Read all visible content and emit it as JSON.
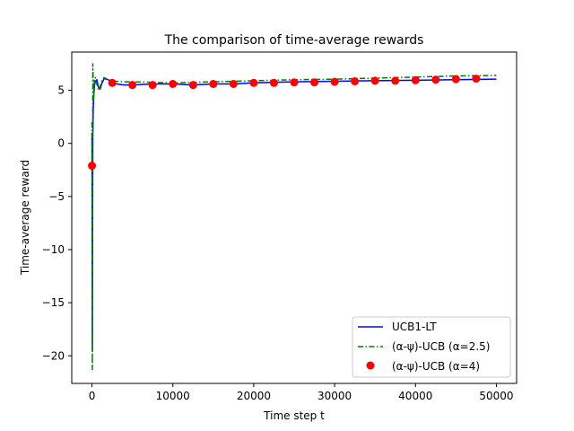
{
  "chart_data": {
    "type": "line",
    "title": "The comparison of time-average rewards",
    "xlabel": "Time step t",
    "ylabel": "Time-average reward",
    "xlim": [
      -2500,
      52500
    ],
    "ylim": [
      -22.6,
      8.6
    ],
    "xticks": [
      0,
      10000,
      20000,
      30000,
      40000,
      50000
    ],
    "xtick_labels": [
      "0",
      "10000",
      "20000",
      "30000",
      "40000",
      "50000"
    ],
    "yticks": [
      -20,
      -15,
      -10,
      -5,
      0,
      5
    ],
    "ytick_labels": [
      "−20",
      "−15",
      "−10",
      "−5",
      "0",
      "5"
    ],
    "grid": false,
    "legend_position": "lower-right",
    "series": [
      {
        "name": "UCB1-LT",
        "style": "solid",
        "color": "#0000ff",
        "x": [
          0,
          50,
          100,
          150,
          200,
          300,
          400,
          600,
          800,
          1000,
          1200,
          1500,
          2000,
          2500,
          3000,
          4000,
          5000,
          7500,
          10000,
          12500,
          15000,
          17500,
          20000,
          25000,
          30000,
          35000,
          40000,
          45000,
          50000
        ],
        "y": [
          1.0,
          -19.5,
          0.5,
          3.0,
          4.2,
          5.4,
          5.8,
          6.0,
          5.3,
          5.1,
          5.6,
          6.1,
          6.0,
          5.8,
          5.6,
          5.5,
          5.5,
          5.6,
          5.6,
          5.5,
          5.6,
          5.6,
          5.7,
          5.8,
          5.85,
          5.9,
          5.95,
          6.0,
          6.05
        ]
      },
      {
        "name": "(α-ψ)-UCB (α=2.5)",
        "style": "dashdot",
        "color": "#008000",
        "x": [
          0,
          50,
          100,
          150,
          200,
          300,
          400,
          600,
          800,
          1000,
          1200,
          1500,
          2000,
          2500,
          3000,
          4000,
          5000,
          7500,
          10000,
          12500,
          15000,
          17500,
          20000,
          25000,
          30000,
          35000,
          40000,
          45000,
          50000
        ],
        "y": [
          2.0,
          -21.3,
          7.5,
          6.0,
          4.0,
          5.9,
          6.2,
          5.6,
          5.0,
          5.3,
          5.9,
          6.2,
          6.0,
          5.9,
          5.85,
          5.8,
          5.8,
          5.75,
          5.7,
          5.75,
          5.8,
          5.85,
          5.9,
          6.0,
          6.05,
          6.15,
          6.25,
          6.35,
          6.4
        ]
      },
      {
        "name": "(α-ψ)-UCB (α=4)",
        "style": "markers",
        "color": "#ff0000",
        "x": [
          0,
          2500,
          5000,
          7500,
          10000,
          12500,
          15000,
          17500,
          20000,
          22500,
          25000,
          27500,
          30000,
          32500,
          35000,
          37500,
          40000,
          42500,
          45000,
          47500
        ],
        "y": [
          -2.1,
          5.7,
          5.5,
          5.5,
          5.6,
          5.5,
          5.6,
          5.6,
          5.7,
          5.7,
          5.75,
          5.75,
          5.8,
          5.85,
          5.9,
          5.9,
          5.95,
          6.0,
          6.05,
          6.1
        ]
      }
    ]
  }
}
